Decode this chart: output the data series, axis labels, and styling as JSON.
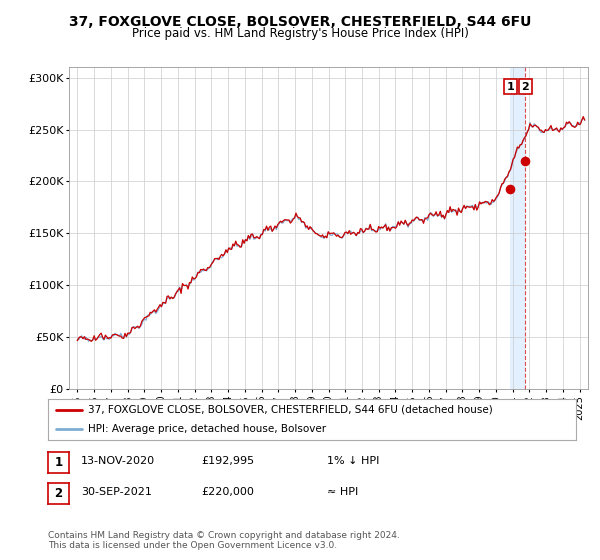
{
  "title": "37, FOXGLOVE CLOSE, BOLSOVER, CHESTERFIELD, S44 6FU",
  "subtitle": "Price paid vs. HM Land Registry's House Price Index (HPI)",
  "xlim": [
    1994.5,
    2025.5
  ],
  "ylim": [
    0,
    310000
  ],
  "yticks": [
    0,
    50000,
    100000,
    150000,
    200000,
    250000,
    300000
  ],
  "ytick_labels": [
    "£0",
    "£50K",
    "£100K",
    "£150K",
    "£200K",
    "£250K",
    "£300K"
  ],
  "xticks": [
    1995,
    1996,
    1997,
    1998,
    1999,
    2000,
    2001,
    2002,
    2003,
    2004,
    2005,
    2006,
    2007,
    2008,
    2009,
    2010,
    2011,
    2012,
    2013,
    2014,
    2015,
    2016,
    2017,
    2018,
    2019,
    2020,
    2021,
    2022,
    2023,
    2024,
    2025
  ],
  "hpi_color": "#7eadd4",
  "price_color": "#cc0000",
  "marker_color": "#cc0000",
  "vline_color": "#cc0000",
  "vband_color": "#ddeeff",
  "grid_color": "#cccccc",
  "bg_color": "#ffffff",
  "legend_label_red": "37, FOXGLOVE CLOSE, BOLSOVER, CHESTERFIELD, S44 6FU (detached house)",
  "legend_label_blue": "HPI: Average price, detached house, Bolsover",
  "sale1_date": 2020.87,
  "sale1_price": 192995,
  "sale2_date": 2021.75,
  "sale2_price": 220000,
  "footer": "Contains HM Land Registry data © Crown copyright and database right 2024.\nThis data is licensed under the Open Government Licence v3.0.",
  "table_rows": [
    {
      "num": "1",
      "date": "13-NOV-2020",
      "price": "£192,995",
      "hpi": "1% ↓ HPI"
    },
    {
      "num": "2",
      "date": "30-SEP-2021",
      "price": "£220,000",
      "hpi": "≈ HPI"
    }
  ]
}
